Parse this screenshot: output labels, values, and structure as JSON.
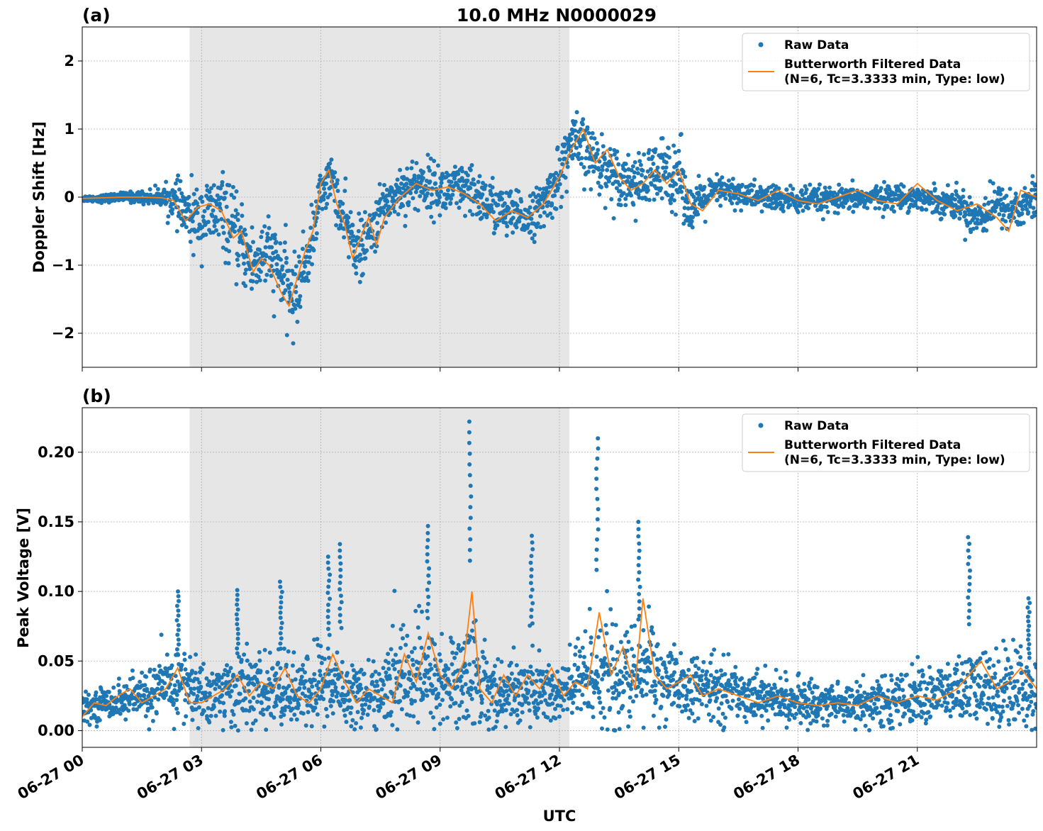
{
  "figure": {
    "title": "10.0 MHz N0000029",
    "xlabel": "UTC"
  },
  "colors": {
    "raw": "#1f77b4",
    "filtered": "#ff7f0e",
    "shade": "#e6e6e6",
    "grid": "#b0b0b0"
  },
  "legend": {
    "raw_label": "Raw Data",
    "filtered_label_line1": "Butterworth Filtered Data",
    "filtered_label_line2": "(N=6, Tc=3.3333 min, Type: low)",
    "placement": "upper-right"
  },
  "chart_data": [
    {
      "type": "scatter",
      "panel_label": "(a)",
      "title": "10.0 MHz N0000029",
      "xlabel": "",
      "ylabel": "Doppler Shift [Hz]",
      "xlim": [
        0,
        24
      ],
      "ylim": [
        -2.5,
        2.5
      ],
      "grid": true,
      "legend": "top-right",
      "yticks": [
        {
          "value": 2,
          "label": "2"
        },
        {
          "value": 1,
          "label": "1"
        },
        {
          "value": 0,
          "label": "0"
        },
        {
          "value": -1,
          "label": "−1"
        },
        {
          "value": -2,
          "label": "−2"
        }
      ],
      "shaded_interval_hours": [
        2.7,
        12.25
      ],
      "series": [
        {
          "name": "Raw Data",
          "kind": "points",
          "x_hours": [
            0,
            0.5,
            1,
            1.5,
            2,
            2.3,
            2.7,
            3,
            3.5,
            4,
            4.3,
            4.6,
            5,
            5.3,
            5.5,
            5.8,
            6,
            6.3,
            6.5,
            6.8,
            7,
            7.3,
            7.6,
            8,
            8.5,
            9,
            9.5,
            10,
            10.5,
            11,
            11.5,
            12,
            12.3,
            12.6,
            13,
            13.5,
            14,
            14.5,
            15,
            15.3,
            15.7,
            16,
            17,
            18,
            19,
            20,
            21,
            22,
            22.5,
            23,
            23.5,
            24
          ],
          "y_center": [
            -0.02,
            -0.02,
            0,
            0,
            0,
            -0.05,
            -0.3,
            -0.3,
            -0.2,
            -0.7,
            -1.0,
            -0.8,
            -1.1,
            -1.5,
            -1.2,
            -0.6,
            0.1,
            0.3,
            -0.3,
            -0.6,
            -0.8,
            -0.5,
            -0.1,
            0.1,
            0.2,
            0.1,
            0.1,
            0.0,
            -0.2,
            -0.3,
            -0.2,
            0.3,
            0.8,
            0.7,
            0.5,
            0.3,
            0.2,
            0.3,
            0.4,
            -0.2,
            0.0,
            0.1,
            0.0,
            -0.05,
            -0.05,
            0.0,
            0.0,
            -0.1,
            -0.3,
            -0.1,
            -0.2,
            0.0
          ],
          "y_spread": [
            0.04,
            0.05,
            0.06,
            0.08,
            0.12,
            0.25,
            0.4,
            0.45,
            0.5,
            0.5,
            0.5,
            0.5,
            0.5,
            0.5,
            0.45,
            0.4,
            0.3,
            0.3,
            0.4,
            0.4,
            0.4,
            0.35,
            0.3,
            0.35,
            0.35,
            0.35,
            0.35,
            0.35,
            0.35,
            0.3,
            0.3,
            0.4,
            0.4,
            0.4,
            0.4,
            0.35,
            0.35,
            0.5,
            0.5,
            0.3,
            0.25,
            0.2,
            0.18,
            0.18,
            0.16,
            0.16,
            0.16,
            0.2,
            0.3,
            0.25,
            0.3,
            0.3
          ]
        },
        {
          "name": "Butterworth Filtered Data (N=6, Tc=3.3333 min, Type: low)",
          "kind": "line",
          "x_hours": [
            0,
            0.5,
            1,
            1.5,
            2,
            2.3,
            2.6,
            2.9,
            3.2,
            3.5,
            3.8,
            4.0,
            4.3,
            4.5,
            4.7,
            5.0,
            5.2,
            5.4,
            5.6,
            5.8,
            6.0,
            6.2,
            6.4,
            6.6,
            6.8,
            7.0,
            7.2,
            7.4,
            7.6,
            8.0,
            8.4,
            8.8,
            9.2,
            9.6,
            10.0,
            10.4,
            10.8,
            11.2,
            11.6,
            12.0,
            12.3,
            12.6,
            12.9,
            13.2,
            13.5,
            13.8,
            14.1,
            14.4,
            14.7,
            15.0,
            15.3,
            15.6,
            16.0,
            16.5,
            17.0,
            17.5,
            18.0,
            18.5,
            19.0,
            19.5,
            20.0,
            20.5,
            21.0,
            21.5,
            22.0,
            22.5,
            23.0,
            23.3,
            23.6,
            24.0
          ],
          "y": [
            -0.02,
            -0.01,
            0,
            0,
            -0.01,
            -0.05,
            -0.35,
            -0.15,
            -0.1,
            -0.2,
            -0.6,
            -0.5,
            -1.1,
            -0.9,
            -1.0,
            -1.4,
            -1.6,
            -1.2,
            -0.8,
            -0.5,
            0.2,
            0.4,
            -0.1,
            -0.4,
            -0.9,
            -0.6,
            -0.3,
            -0.7,
            -0.3,
            0.0,
            0.2,
            0.1,
            0.15,
            0.05,
            -0.1,
            -0.35,
            -0.2,
            -0.3,
            -0.1,
            0.3,
            0.7,
            1.0,
            0.5,
            0.7,
            0.3,
            0.1,
            0.2,
            0.4,
            0.2,
            0.4,
            -0.1,
            -0.2,
            0.1,
            0.05,
            -0.05,
            0.1,
            -0.05,
            -0.1,
            0.0,
            0.1,
            -0.05,
            -0.1,
            0.2,
            -0.05,
            -0.2,
            -0.1,
            -0.3,
            -0.5,
            0.1,
            0.0
          ]
        }
      ]
    },
    {
      "type": "scatter",
      "panel_label": "(b)",
      "title": "",
      "xlabel": "UTC",
      "ylabel": "Peak Voltage [V]",
      "xlim": [
        0,
        24
      ],
      "ylim": [
        -0.012,
        0.232
      ],
      "grid": true,
      "legend": "top-right",
      "yticks": [
        {
          "value": 0.2,
          "label": "0.20"
        },
        {
          "value": 0.15,
          "label": "0.15"
        },
        {
          "value": 0.1,
          "label": "0.10"
        },
        {
          "value": 0.05,
          "label": "0.05"
        },
        {
          "value": 0.0,
          "label": "0.00"
        }
      ],
      "xticks": [
        {
          "value": 0,
          "label": "06-27 00"
        },
        {
          "value": 3,
          "label": "06-27 03"
        },
        {
          "value": 6,
          "label": "06-27 06"
        },
        {
          "value": 9,
          "label": "06-27 09"
        },
        {
          "value": 12,
          "label": "06-27 12"
        },
        {
          "value": 15,
          "label": "06-27 15"
        },
        {
          "value": 18,
          "label": "06-27 18"
        },
        {
          "value": 21,
          "label": "06-27 21"
        }
      ],
      "shaded_interval_hours": [
        2.7,
        12.25
      ],
      "series": [
        {
          "name": "Raw Data",
          "kind": "points",
          "x_hours": [
            0,
            0.5,
            1,
            1.5,
            2,
            2.5,
            3,
            3.5,
            4,
            4.5,
            5,
            5.5,
            6,
            6.5,
            7,
            7.5,
            8,
            8.5,
            9,
            9.5,
            9.8,
            10.2,
            10.6,
            11,
            11.5,
            12,
            12.5,
            13,
            13.5,
            14,
            14.2,
            14.6,
            15,
            15.5,
            16,
            17,
            18,
            19,
            20,
            20.5,
            21,
            22,
            22.5,
            23,
            23.5,
            24
          ],
          "y_center": [
            0.015,
            0.02,
            0.022,
            0.025,
            0.03,
            0.035,
            0.025,
            0.027,
            0.03,
            0.028,
            0.03,
            0.025,
            0.035,
            0.03,
            0.025,
            0.025,
            0.04,
            0.04,
            0.035,
            0.035,
            0.045,
            0.03,
            0.025,
            0.03,
            0.03,
            0.025,
            0.035,
            0.045,
            0.035,
            0.04,
            0.05,
            0.035,
            0.03,
            0.03,
            0.03,
            0.025,
            0.02,
            0.02,
            0.02,
            0.022,
            0.025,
            0.028,
            0.03,
            0.03,
            0.035,
            0.025
          ],
          "y_spread": [
            0.008,
            0.01,
            0.012,
            0.015,
            0.02,
            0.025,
            0.02,
            0.022,
            0.025,
            0.022,
            0.025,
            0.022,
            0.03,
            0.025,
            0.02,
            0.022,
            0.035,
            0.035,
            0.03,
            0.03,
            0.04,
            0.025,
            0.02,
            0.025,
            0.025,
            0.02,
            0.03,
            0.04,
            0.03,
            0.035,
            0.04,
            0.025,
            0.02,
            0.02,
            0.02,
            0.015,
            0.014,
            0.014,
            0.015,
            0.016,
            0.018,
            0.02,
            0.025,
            0.025,
            0.03,
            0.02
          ],
          "peaks": [
            {
              "x": 2.4,
              "y": 0.1
            },
            {
              "x": 3.9,
              "y": 0.101
            },
            {
              "x": 5.0,
              "y": 0.107
            },
            {
              "x": 6.2,
              "y": 0.125
            },
            {
              "x": 6.5,
              "y": 0.134
            },
            {
              "x": 8.7,
              "y": 0.147
            },
            {
              "x": 9.75,
              "y": 0.222
            },
            {
              "x": 11.3,
              "y": 0.14
            },
            {
              "x": 12.95,
              "y": 0.21
            },
            {
              "x": 14.0,
              "y": 0.15
            },
            {
              "x": 22.3,
              "y": 0.139
            },
            {
              "x": 23.8,
              "y": 0.095
            }
          ]
        },
        {
          "name": "Butterworth Filtered Data (N=6, Tc=3.3333 min, Type: low)",
          "kind": "line",
          "x_hours": [
            0,
            0.3,
            0.6,
            0.9,
            1.2,
            1.5,
            1.8,
            2.1,
            2.4,
            2.7,
            3.0,
            3.3,
            3.6,
            3.9,
            4.2,
            4.5,
            4.8,
            5.1,
            5.4,
            5.7,
            6.0,
            6.3,
            6.6,
            6.9,
            7.2,
            7.5,
            7.8,
            8.1,
            8.4,
            8.7,
            9.0,
            9.3,
            9.6,
            9.8,
            10.0,
            10.3,
            10.6,
            10.9,
            11.2,
            11.5,
            11.8,
            12.1,
            12.4,
            12.7,
            13.0,
            13.3,
            13.6,
            13.9,
            14.1,
            14.4,
            14.7,
            15.0,
            15.3,
            15.6,
            16.0,
            16.5,
            17.0,
            17.5,
            18.0,
            18.5,
            19.0,
            19.5,
            20.0,
            20.5,
            21.0,
            21.5,
            22.0,
            22.3,
            22.6,
            23.0,
            23.3,
            23.6,
            24.0
          ],
          "y": [
            0.01,
            0.02,
            0.018,
            0.025,
            0.03,
            0.02,
            0.025,
            0.03,
            0.045,
            0.02,
            0.02,
            0.025,
            0.03,
            0.04,
            0.025,
            0.035,
            0.03,
            0.045,
            0.025,
            0.02,
            0.03,
            0.055,
            0.035,
            0.02,
            0.03,
            0.025,
            0.02,
            0.055,
            0.035,
            0.07,
            0.04,
            0.03,
            0.05,
            0.1,
            0.03,
            0.02,
            0.04,
            0.025,
            0.04,
            0.03,
            0.045,
            0.025,
            0.035,
            0.03,
            0.085,
            0.04,
            0.06,
            0.03,
            0.095,
            0.04,
            0.03,
            0.035,
            0.04,
            0.025,
            0.03,
            0.025,
            0.02,
            0.025,
            0.02,
            0.018,
            0.02,
            0.018,
            0.025,
            0.02,
            0.025,
            0.022,
            0.03,
            0.04,
            0.05,
            0.03,
            0.035,
            0.045,
            0.03
          ]
        }
      ]
    }
  ]
}
